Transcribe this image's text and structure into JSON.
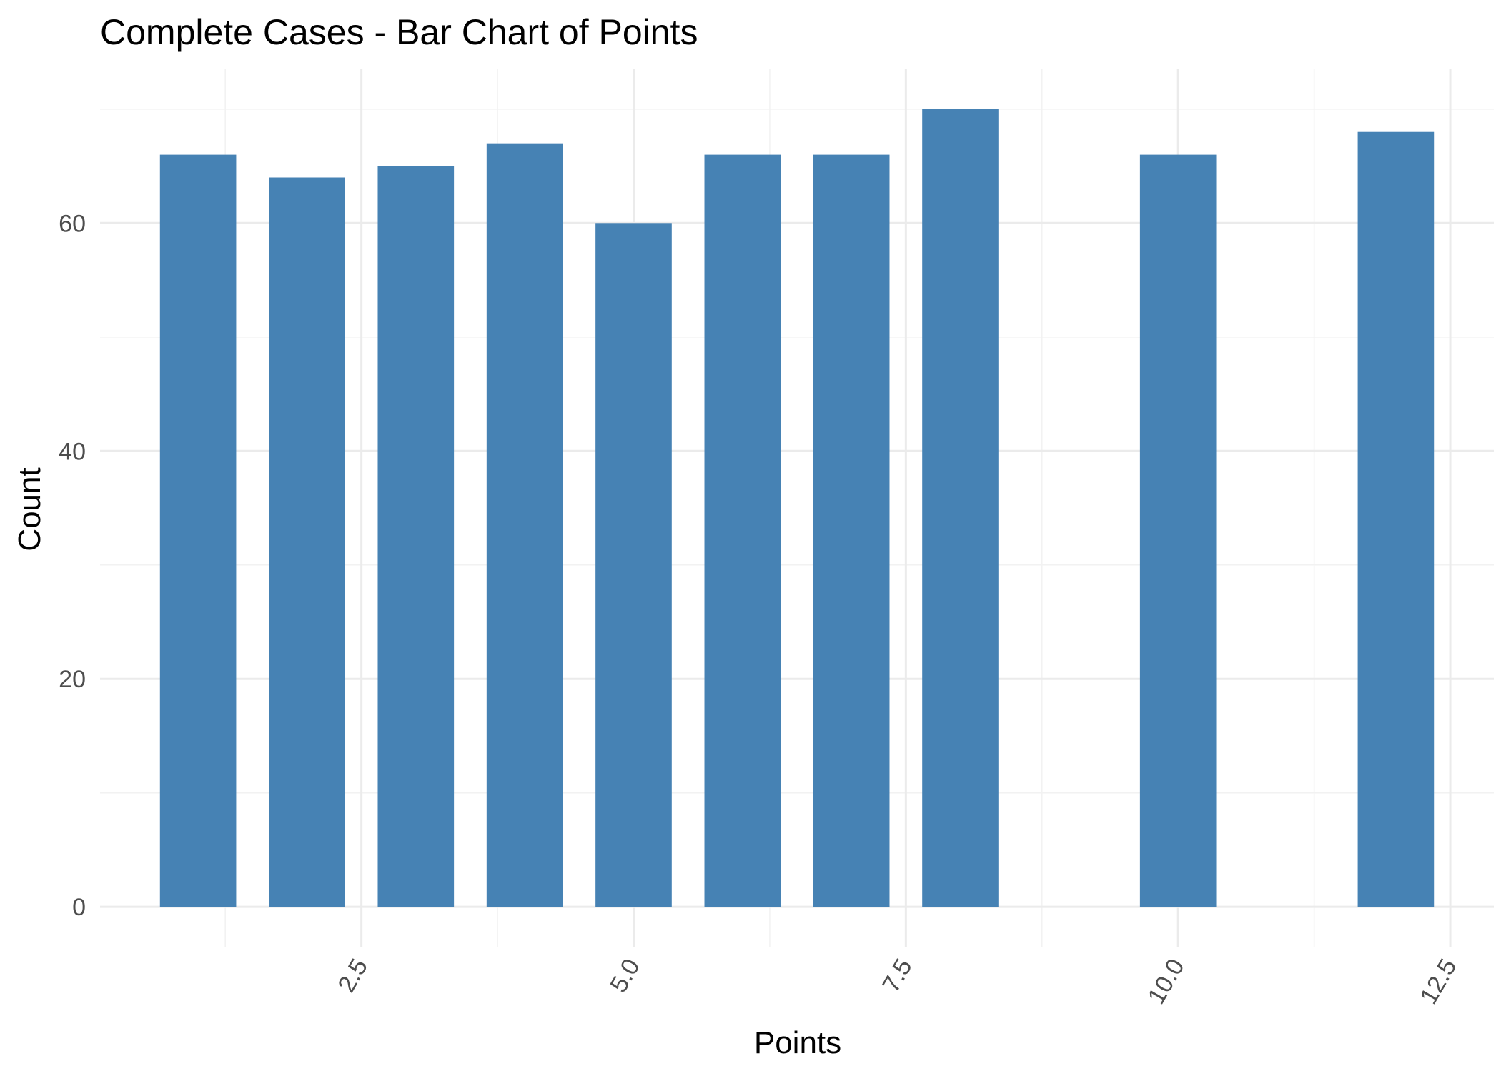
{
  "chart_data": {
    "type": "bar",
    "title": "Complete Cases - Bar Chart of  Points",
    "xlabel": "Points",
    "ylabel": "Count",
    "x": [
      1,
      2,
      3,
      4,
      5,
      6,
      7,
      8,
      10,
      12
    ],
    "values": [
      66,
      64,
      65,
      67,
      60,
      66,
      66,
      70,
      66,
      68
    ],
    "xlim": [
      0.1,
      12.9
    ],
    "ylim": [
      -3.5,
      73.5
    ],
    "x_ticks": [
      2.5,
      5.0,
      7.5,
      10.0,
      12.5
    ],
    "x_tick_labels": [
      "2.5",
      "5.0",
      "7.5",
      "10.0",
      "12.5"
    ],
    "y_ticks": [
      0,
      20,
      40,
      60
    ],
    "y_tick_labels": [
      "0",
      "20",
      "40",
      "60"
    ],
    "bar_width": 0.7,
    "bar_color": "#4682b4",
    "grid": true,
    "legend": "none"
  }
}
